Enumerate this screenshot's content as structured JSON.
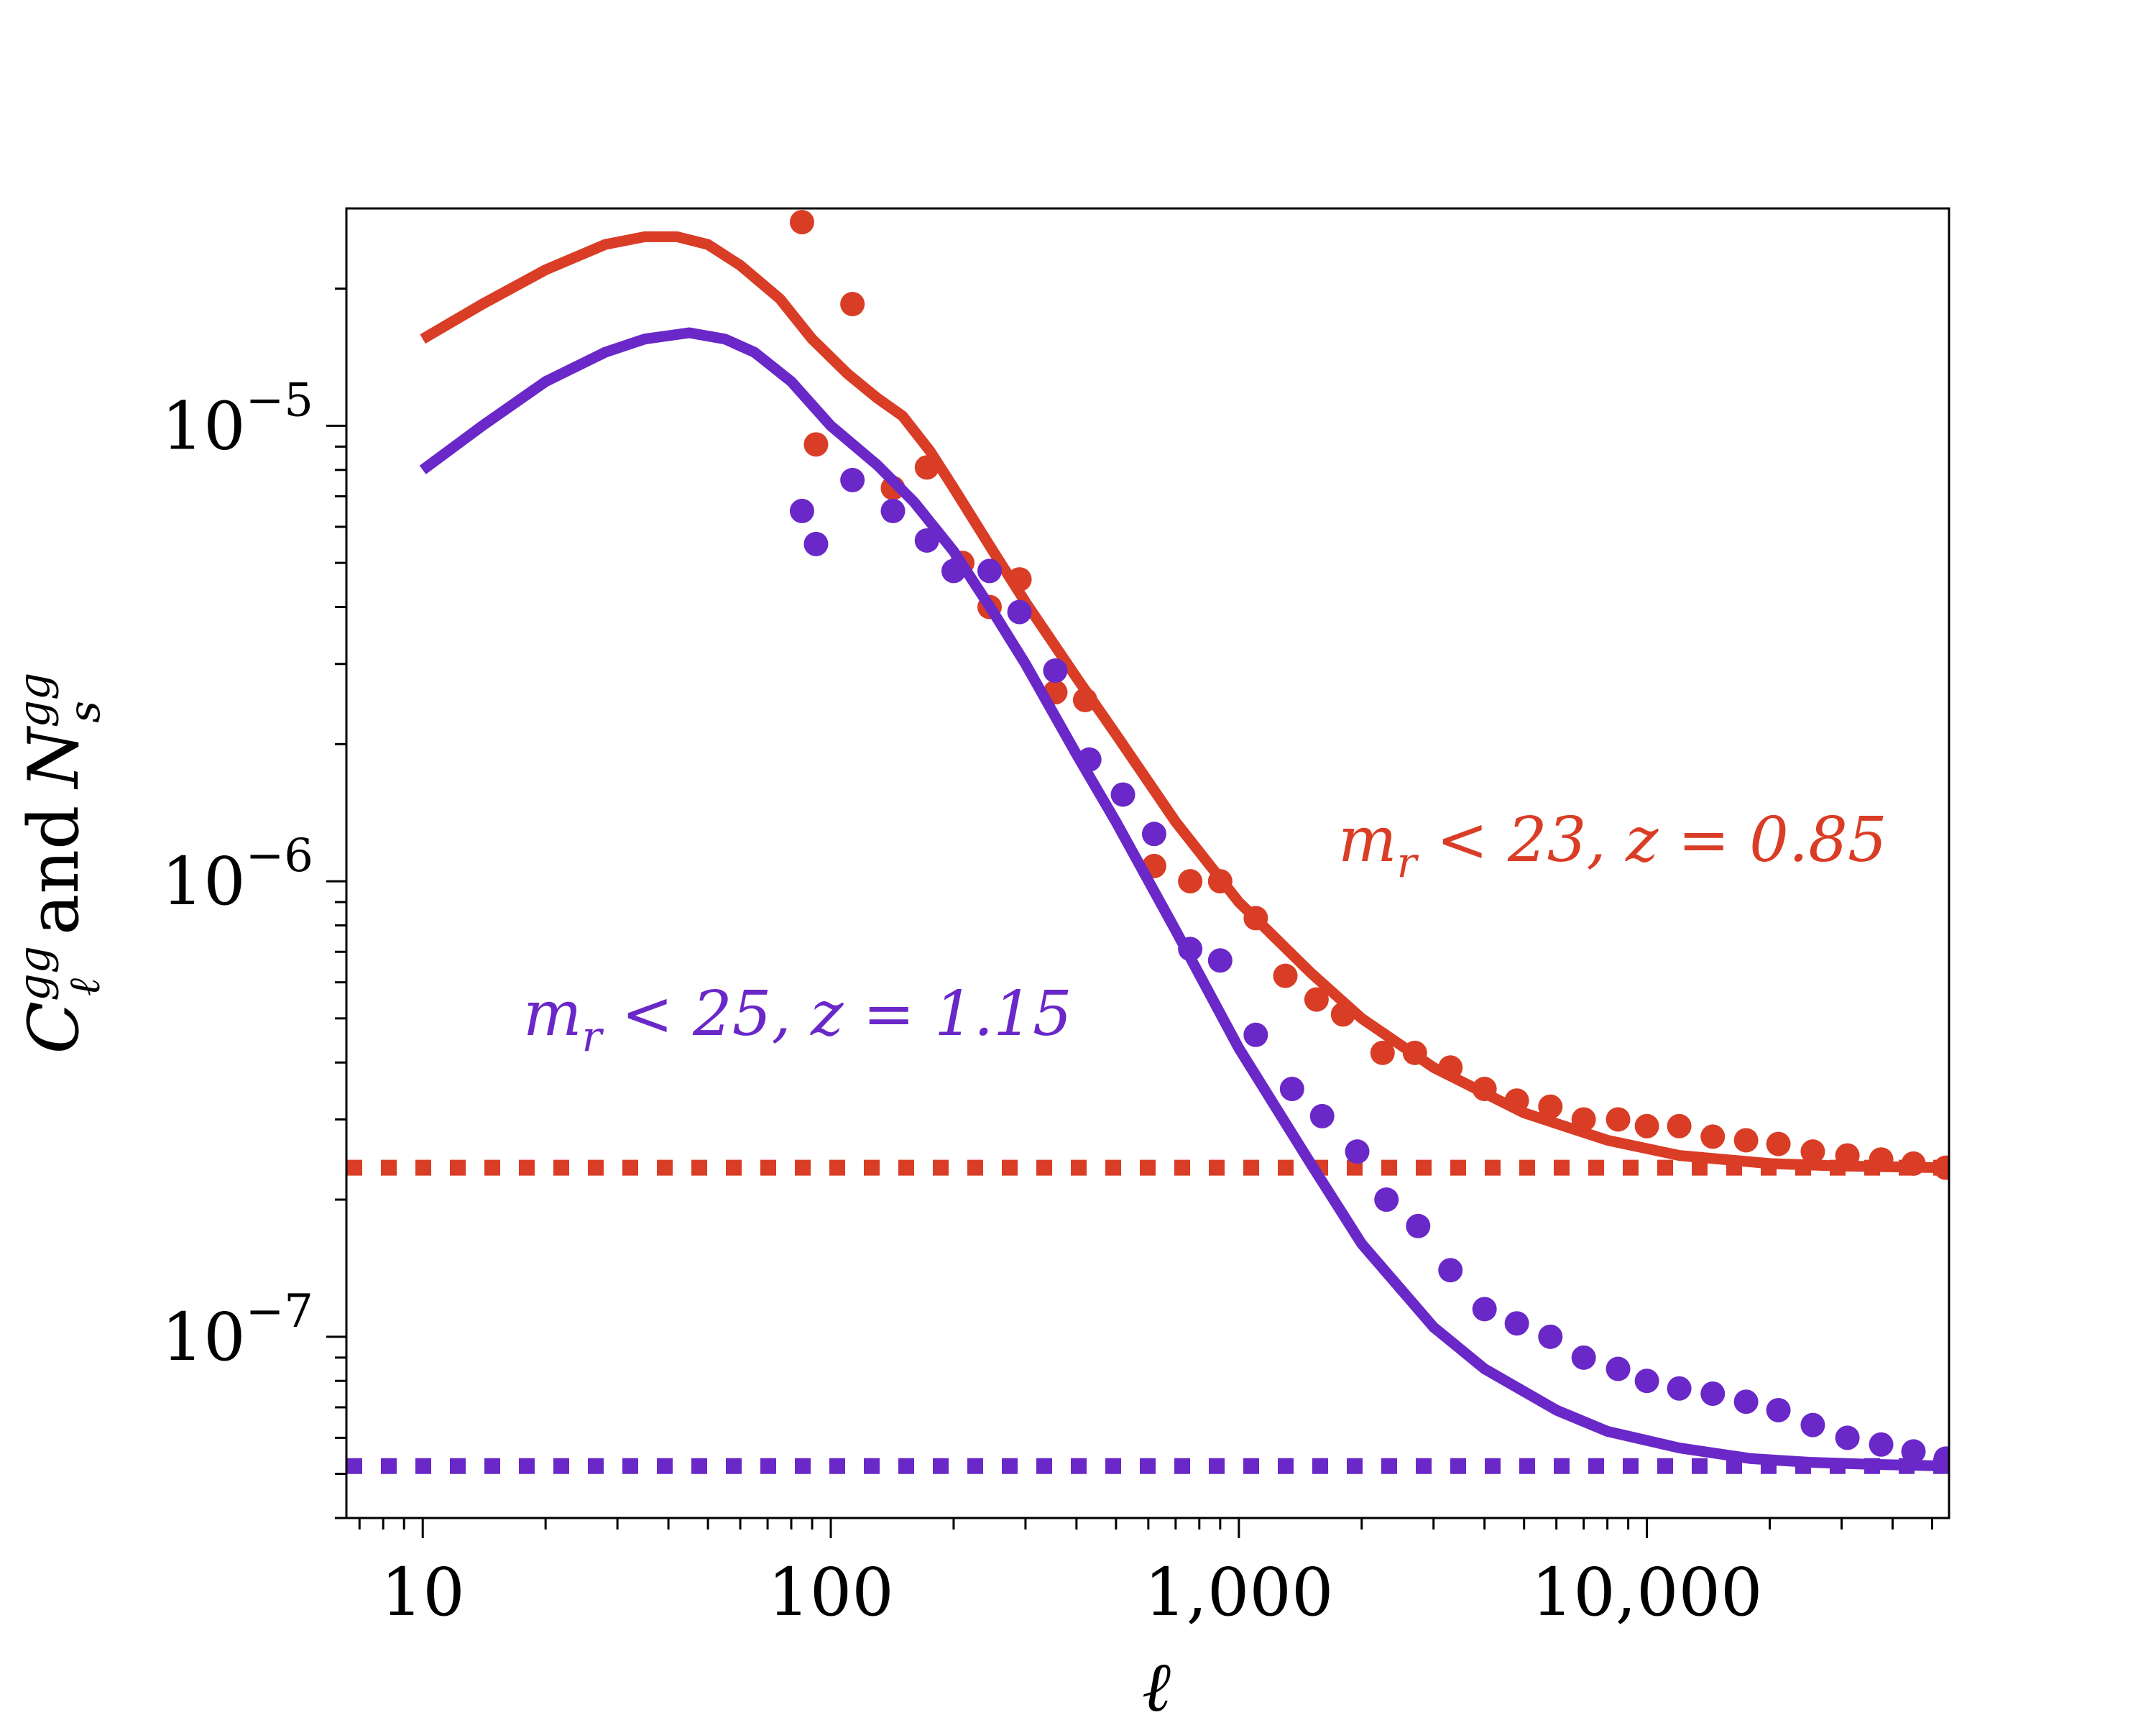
{
  "chart_data": {
    "type": "line",
    "scale": {
      "x": "log",
      "y": "log"
    },
    "xlabel": "ℓ",
    "ylabel": {
      "main": "C",
      "sup": "gg",
      "sub": "ℓ",
      "mid": "and",
      "main2": "N",
      "sup2": "gg",
      "sub2": "s"
    },
    "xlim": [
      6.5,
      55000
    ],
    "ylim": [
      4e-08,
      3e-05
    ],
    "x_ticks": [
      {
        "value": 10,
        "label": "10"
      },
      {
        "value": 100,
        "label": "100"
      },
      {
        "value": 1000,
        "label": "1,000"
      },
      {
        "value": 10000,
        "label": "10,000"
      }
    ],
    "y_ticks": [
      {
        "value": 1e-05,
        "base": "10",
        "exp": "−5"
      },
      {
        "value": 1e-06,
        "base": "10",
        "exp": "−6"
      },
      {
        "value": 1e-07,
        "base": "10",
        "exp": "−7"
      }
    ],
    "series": [
      {
        "name": "m_r < 23, z = 0.85",
        "label": "m",
        "label_sub": "r",
        "label_rest": " < 23, z = 0.85",
        "color": "#d93d26",
        "model_x": [
          10,
          14,
          20,
          28,
          35,
          42,
          50,
          60,
          75,
          90,
          110,
          130,
          150,
          175,
          200,
          250,
          300,
          400,
          500,
          700,
          1000,
          1500,
          2000,
          3000,
          5000,
          8000,
          12000,
          20000,
          30000,
          55000
        ],
        "model_y": [
          1.55e-05,
          1.85e-05,
          2.2e-05,
          2.5e-05,
          2.6e-05,
          2.6e-05,
          2.5e-05,
          2.25e-05,
          1.9e-05,
          1.55e-05,
          1.3e-05,
          1.15e-05,
          1.05e-05,
          8.8e-06,
          7.3e-06,
          5.3e-06,
          4.1e-06,
          2.8e-06,
          2.1e-06,
          1.35e-06,
          9e-07,
          6.3e-07,
          5e-07,
          3.9e-07,
          3.1e-07,
          2.7e-07,
          2.5e-07,
          2.4e-07,
          2.37e-07,
          2.35e-07
        ],
        "points_x": [
          85,
          92,
          113,
          142,
          172,
          210,
          245,
          290,
          355,
          420,
          620,
          760,
          900,
          1100,
          1300,
          1550,
          1800,
          2250,
          2700,
          3300,
          4000,
          4800,
          5800,
          7000,
          8500,
          10000,
          12000,
          14500,
          17500,
          21000,
          25500,
          31000,
          37500,
          45000,
          54000
        ],
        "points_y": [
          2.8e-05,
          9.1e-06,
          1.85e-05,
          7.3e-06,
          8.1e-06,
          5e-06,
          4e-06,
          4.6e-06,
          2.6e-06,
          2.5e-06,
          1.08e-06,
          1e-06,
          1e-06,
          8.3e-07,
          6.2e-07,
          5.5e-07,
          5.1e-07,
          4.2e-07,
          4.2e-07,
          3.9e-07,
          3.5e-07,
          3.3e-07,
          3.2e-07,
          3e-07,
          3e-07,
          2.9e-07,
          2.9e-07,
          2.75e-07,
          2.7e-07,
          2.65e-07,
          2.55e-07,
          2.5e-07,
          2.45e-07,
          2.4e-07,
          2.35e-07
        ],
        "noise_level": 2.35e-07
      },
      {
        "name": "m_r < 25, z = 1.15",
        "label": "m",
        "label_sub": "r",
        "label_rest": " < 25, z = 1.15",
        "color": "#6a28c8",
        "model_x": [
          10,
          14,
          20,
          28,
          35,
          45,
          55,
          65,
          80,
          100,
          130,
          160,
          200,
          250,
          300,
          400,
          500,
          700,
          1000,
          1500,
          2000,
          3000,
          4000,
          6000,
          8000,
          12000,
          18000,
          25000,
          35000,
          55000
        ],
        "model_y": [
          8e-06,
          1e-05,
          1.25e-05,
          1.45e-05,
          1.55e-05,
          1.6e-05,
          1.55e-05,
          1.45e-05,
          1.25e-05,
          1e-05,
          8.2e-06,
          6.8e-06,
          5.3e-06,
          3.9e-06,
          3e-06,
          1.9e-06,
          1.35e-06,
          7.8e-07,
          4.3e-07,
          2.4e-07,
          1.6e-07,
          1.05e-07,
          8.5e-08,
          6.9e-08,
          6.2e-08,
          5.7e-08,
          5.4e-08,
          5.3e-08,
          5.25e-08,
          5.2e-08
        ],
        "points_x": [
          85,
          92,
          113,
          142,
          172,
          200,
          245,
          290,
          355,
          430,
          520,
          620,
          760,
          900,
          1100,
          1350,
          1600,
          1950,
          2300,
          2750,
          3300,
          4000,
          4800,
          5800,
          7000,
          8500,
          10000,
          12000,
          14500,
          17500,
          21000,
          25500,
          31000,
          37500,
          45000,
          54000
        ],
        "points_y": [
          6.5e-06,
          5.5e-06,
          7.6e-06,
          6.5e-06,
          5.6e-06,
          4.8e-06,
          4.8e-06,
          3.9e-06,
          2.9e-06,
          1.85e-06,
          1.55e-06,
          1.27e-06,
          7.1e-07,
          6.7e-07,
          4.6e-07,
          3.5e-07,
          3.05e-07,
          2.55e-07,
          2e-07,
          1.75e-07,
          1.4e-07,
          1.15e-07,
          1.07e-07,
          1e-07,
          9e-08,
          8.5e-08,
          8e-08,
          7.7e-08,
          7.5e-08,
          7.2e-08,
          6.9e-08,
          6.4e-08,
          6e-08,
          5.8e-08,
          5.6e-08,
          5.4e-08
        ],
        "noise_level": 5.2e-08
      }
    ]
  }
}
